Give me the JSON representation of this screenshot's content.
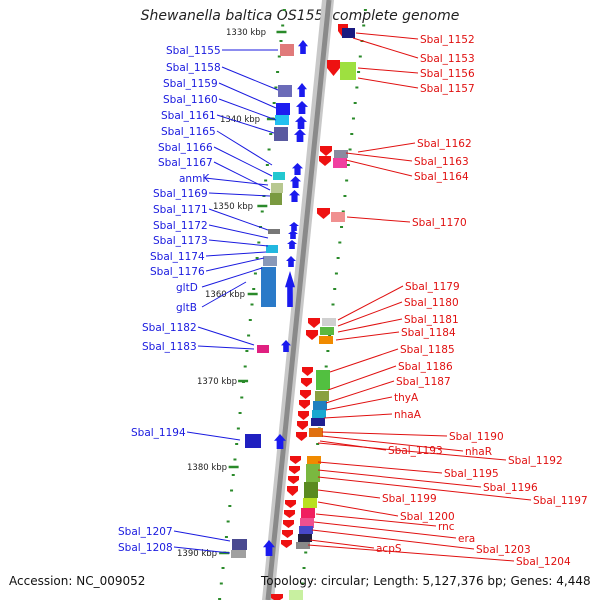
{
  "title": "Shewanella baltica OS155, complete genome",
  "accession": "Accession: NC_009052",
  "topology": "Topology: circular; Length: 5,127,376 bp; Genes: 4,448",
  "colors": {
    "left_labels": "#1a1adf",
    "right_labels": "#e01010",
    "forward_arrow": "#1a1aee",
    "reverse_arrow": "#ee1111",
    "ruler_tick": "#2a8a2a",
    "axis": "#8a8a8a"
  },
  "kbp_labels": [
    "1330 kbp",
    "1340 kbp",
    "1350 kbp",
    "1360 kbp",
    "1370 kbp",
    "1380 kbp",
    "1390 kbp"
  ],
  "left_genes": [
    "Sbal_1155",
    "Sbal_1158",
    "Sbal_1159",
    "Sbal_1160",
    "Sbal_1161",
    "Sbal_1165",
    "Sbal_1166",
    "Sbal_1167",
    "anmK",
    "Sbal_1169",
    "Sbal_1171",
    "Sbal_1172",
    "Sbal_1173",
    "Sbal_1174",
    "Sbal_1176",
    "gltD",
    "gltB",
    "Sbal_1182",
    "Sbal_1183",
    "Sbal_1194",
    "Sbal_1207",
    "Sbal_1208"
  ],
  "right_genes": [
    "Sbal_1152",
    "Sbal_1153",
    "Sbal_1156",
    "Sbal_1157",
    "Sbal_1162",
    "Sbal_1163",
    "Sbal_1164",
    "Sbal_1170",
    "Sbal_1179",
    "Sbal_1180",
    "Sbal_1181",
    "Sbal_1184",
    "Sbal_1185",
    "Sbal_1186",
    "Sbal_1187",
    "thyA",
    "nhaA",
    "Sbal_1190",
    "nhaR",
    "Sbal_1193",
    "Sbal_1192",
    "Sbal_1195",
    "Sbal_1196",
    "Sbal_1197",
    "Sbal_1199",
    "Sbal_1200",
    "rnc",
    "era",
    "Sbal_1203",
    "acpS",
    "Sbal_1204"
  ]
}
